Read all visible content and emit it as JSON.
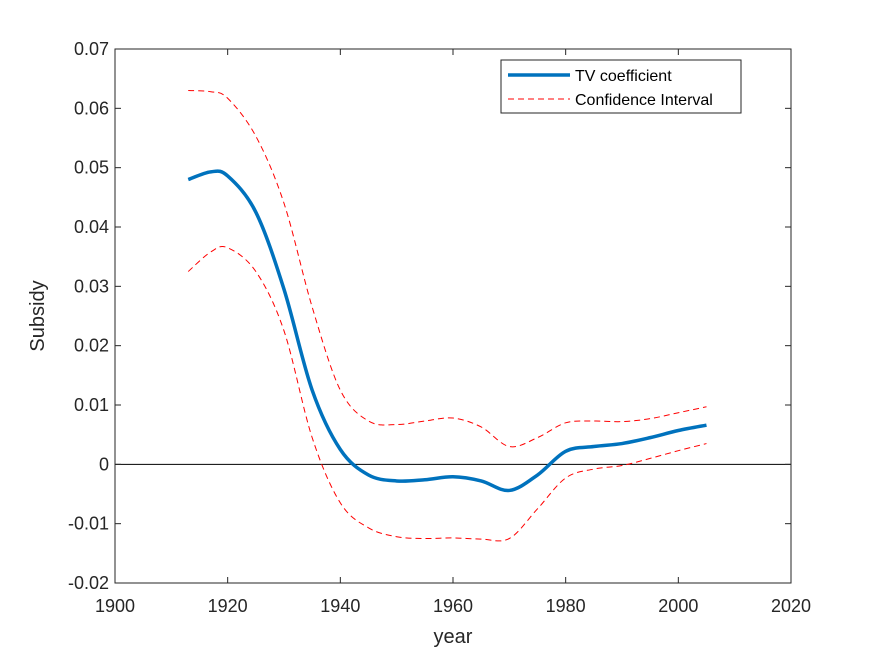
{
  "chart_data": {
    "type": "line",
    "xlabel": "year",
    "ylabel": "Subsidy",
    "xlim": [
      1900,
      2020
    ],
    "ylim": [
      -0.02,
      0.07
    ],
    "xticks": [
      1900,
      1920,
      1940,
      1960,
      1980,
      2000,
      2020
    ],
    "yticks": [
      -0.02,
      -0.01,
      0,
      0.01,
      0.02,
      0.03,
      0.04,
      0.05,
      0.06,
      0.07
    ],
    "xtick_labels": [
      "1900",
      "1920",
      "1940",
      "1960",
      "1980",
      "2000",
      "2020"
    ],
    "ytick_labels": [
      "-0.02",
      "-0.01",
      "0",
      "0.01",
      "0.02",
      "0.03",
      "0.04",
      "0.05",
      "0.06",
      "0.07"
    ],
    "grid": false,
    "legend_position": "top-right",
    "zero_line": true,
    "x": [
      1913,
      1917,
      1920,
      1925,
      1930,
      1935,
      1940,
      1945,
      1950,
      1955,
      1960,
      1965,
      1970,
      1975,
      1980,
      1985,
      1990,
      1995,
      2000,
      2005
    ],
    "series": [
      {
        "name": "TV coefficient",
        "style": "solid",
        "color": "#0072BD",
        "values": [
          0.048,
          0.0493,
          0.0486,
          0.0425,
          0.0295,
          0.0125,
          0.0025,
          -0.0018,
          -0.0028,
          -0.0026,
          -0.0021,
          -0.0028,
          -0.0044,
          -0.0018,
          0.0022,
          0.003,
          0.0035,
          0.0045,
          0.0057,
          0.0066
        ]
      },
      {
        "name": "Confidence Interval",
        "style": "dashed",
        "color": "#FF0000",
        "values": [
          0.063,
          0.0628,
          0.0617,
          0.0553,
          0.044,
          0.0265,
          0.0125,
          0.0073,
          0.0067,
          0.0073,
          0.0078,
          0.0063,
          0.003,
          0.0045,
          0.007,
          0.0073,
          0.0072,
          0.0077,
          0.0087,
          0.0097
        ]
      },
      {
        "style": "dashed",
        "color": "#FF0000",
        "values": [
          0.0325,
          0.0358,
          0.0365,
          0.0325,
          0.0225,
          0.0045,
          -0.0065,
          -0.0107,
          -0.0122,
          -0.0125,
          -0.0124,
          -0.0126,
          -0.0125,
          -0.0075,
          -0.0023,
          -0.0008,
          -0.0002,
          0.001,
          0.0023,
          0.0035
        ]
      }
    ]
  }
}
